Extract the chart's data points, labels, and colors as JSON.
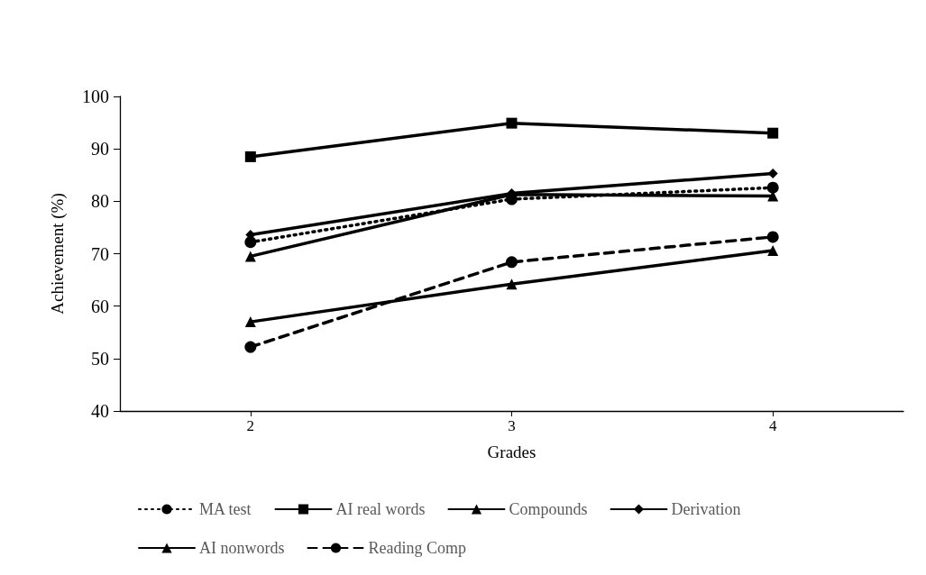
{
  "chart_data": {
    "type": "line",
    "xlabel": "Grades",
    "ylabel": "Achievement (%)",
    "x": [
      2,
      3,
      4
    ],
    "xlim": [
      1.5,
      4.5
    ],
    "xticks": [
      2,
      3,
      4
    ],
    "ylim": [
      40,
      100
    ],
    "yticks": [
      40,
      50,
      60,
      70,
      80,
      90,
      100
    ],
    "grid": false,
    "legend": "bottom",
    "series": [
      {
        "name": "MA test",
        "color": "#000000",
        "values": [
          72.2,
          80.4,
          82.6
        ],
        "marker": "circle",
        "line_style": "dotted"
      },
      {
        "name": "AI real words",
        "color": "#000000",
        "values": [
          88.5,
          94.9,
          93.0
        ],
        "marker": "square",
        "line_style": "solid"
      },
      {
        "name": "Compounds",
        "color": "#000000",
        "values": [
          69.5,
          81.3,
          81.0
        ],
        "marker": "triangle",
        "line_style": "solid"
      },
      {
        "name": "Derivation",
        "color": "#000000",
        "values": [
          73.6,
          81.5,
          85.3
        ],
        "marker": "diamond",
        "line_style": "solid"
      },
      {
        "name": "AI nonwords",
        "color": "#000000",
        "values": [
          57.0,
          64.2,
          70.6
        ],
        "marker": "triangle",
        "line_style": "solid"
      },
      {
        "name": "Reading Comp",
        "color": "#000000",
        "values": [
          52.2,
          68.4,
          73.2
        ],
        "marker": "circle",
        "line_style": "dashed"
      }
    ]
  }
}
